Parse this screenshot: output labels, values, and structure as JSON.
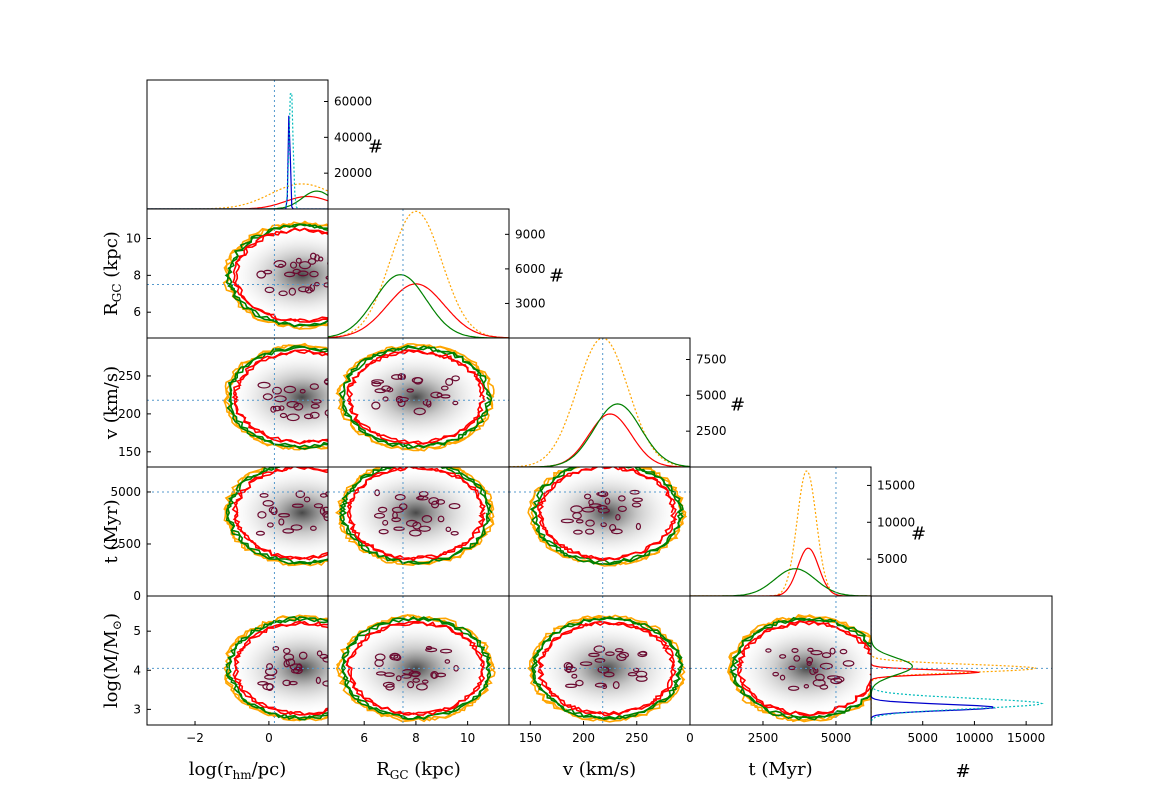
{
  "chart_data": {
    "type": "corner",
    "variables": [
      {
        "id": "logr",
        "label": "log(r_hm/pc)",
        "label_main": "log(r",
        "label_sub": "hm",
        "label_tail": "/pc)",
        "range": [
          -3.3,
          1.6
        ],
        "ticks": [
          -2,
          0
        ],
        "tick_labels": [
          "−2",
          "0"
        ],
        "true_value": 0.15
      },
      {
        "id": "rgc",
        "label": "R_GC (kpc)",
        "label_main": "R",
        "label_sub": "GC",
        "label_tail": " (kpc)",
        "range": [
          4.6,
          11.6
        ],
        "ticks": [
          6,
          8,
          10
        ],
        "tick_labels": [
          "6",
          "8",
          "10"
        ],
        "true_value": 7.5
      },
      {
        "id": "v",
        "label": "v (km/s)",
        "label_main": "v (km/s)",
        "label_sub": "",
        "label_tail": "",
        "range": [
          130,
          300
        ],
        "ticks": [
          150,
          200,
          250
        ],
        "tick_labels": [
          "150",
          "200",
          "250"
        ],
        "true_value": 218
      },
      {
        "id": "t",
        "label": "t (Myr)",
        "label_main": "t (Myr)",
        "label_sub": "",
        "label_tail": "",
        "range": [
          0,
          6200
        ],
        "ticks": [
          0,
          2500,
          5000
        ],
        "tick_labels": [
          "0",
          "2500",
          "5000"
        ],
        "true_value": 5000
      },
      {
        "id": "logm",
        "label": "log(M/M☉)",
        "label_main": "log(M/M",
        "label_sub": "⊙",
        "label_tail": ")",
        "range": [
          2.6,
          5.9
        ],
        "ticks": [
          3,
          4,
          5
        ],
        "tick_labels": [
          "3",
          "4",
          "5"
        ],
        "true_value": 4.05
      }
    ],
    "count_label": "#",
    "diag_counts": {
      "logr": {
        "ticks": [
          20000,
          40000,
          60000
        ],
        "tick_labels": [
          "20000",
          "40000",
          "60000"
        ],
        "max": 72000
      },
      "rgc": {
        "ticks": [
          3000,
          6000,
          9000
        ],
        "tick_labels": [
          "3000",
          "6000",
          "9000"
        ],
        "max": 11200
      },
      "v": {
        "ticks": [
          2500,
          5000,
          7500
        ],
        "tick_labels": [
          "2500",
          "5000",
          "7500"
        ],
        "max": 9000
      },
      "t": {
        "ticks": [
          5000,
          10000,
          15000
        ],
        "tick_labels": [
          "5000",
          "10000",
          "15000"
        ],
        "max": 17500
      },
      "logm": {
        "ticks": [
          5000,
          10000,
          15000
        ],
        "tick_labels": [
          "5000",
          "10000",
          "15000"
        ],
        "max": 17500
      }
    },
    "series": [
      {
        "color": "#ffa500",
        "style": "dotted",
        "logr": {
          "mean": 0.9,
          "sd": 0.85,
          "peak": 14000
        },
        "rgc": {
          "mean": 8.0,
          "sd": 1.0,
          "peak": 11000
        },
        "v": {
          "mean": 218,
          "sd": 24,
          "peak": 9000
        },
        "t": {
          "mean": 4000,
          "sd": 330,
          "peak": 17000
        },
        "logm": {
          "mean": 4.05,
          "sd": 0.1,
          "peak": 16000
        }
      },
      {
        "color": "#ff0000",
        "style": "solid",
        "logr": {
          "mean": 1.05,
          "sd": 0.6,
          "peak": 7000
        },
        "rgc": {
          "mean": 8.0,
          "sd": 1.1,
          "peak": 4700
        },
        "v": {
          "mean": 225,
          "sd": 20,
          "peak": 3700
        },
        "t": {
          "mean": 4050,
          "sd": 360,
          "peak": 6500
        },
        "logm": {
          "mean": 3.95,
          "sd": 0.06,
          "peak": 10500
        }
      },
      {
        "color": "#008000",
        "style": "solid",
        "logr": {
          "mean": 1.3,
          "sd": 0.4,
          "peak": 10000
        },
        "rgc": {
          "mean": 7.4,
          "sd": 1.0,
          "peak": 5500
        },
        "v": {
          "mean": 232,
          "sd": 22,
          "peak": 4400
        },
        "t": {
          "mean": 3600,
          "sd": 700,
          "peak": 3700
        },
        "logm": {
          "mean": 4.1,
          "sd": 0.22,
          "peak": 4000
        }
      },
      {
        "color": "#0000cc",
        "style": "solid",
        "logr": {
          "mean": 0.55,
          "sd": 0.025,
          "peak": 58000
        },
        "logm": {
          "mean": 3.05,
          "sd": 0.08,
          "peak": 12000
        }
      },
      {
        "color": "#00bbbb",
        "style": "dotted",
        "logr": {
          "mean": 0.6,
          "sd": 0.05,
          "peak": 70000
        },
        "logm": {
          "mean": 3.15,
          "sd": 0.13,
          "peak": 16500
        }
      }
    ],
    "joint_centers": {
      "logr": 0.9,
      "rgc": 8.0,
      "v": 222,
      "t": 4000,
      "logm": 4.05
    },
    "contour_colors": [
      "#ffa500",
      "#ff0000",
      "#008000",
      "#6b0a30"
    ],
    "reference_line_color": "#5599cc"
  }
}
